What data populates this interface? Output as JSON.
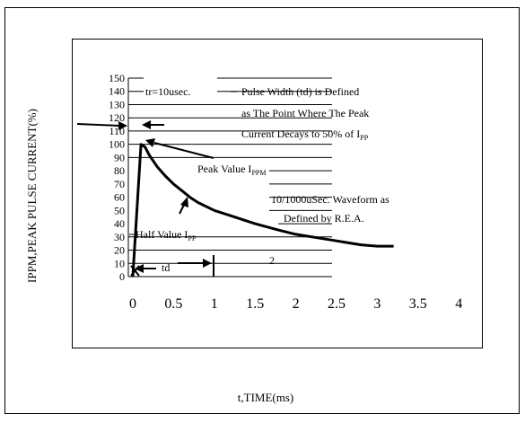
{
  "chart_data": {
    "type": "line",
    "title": "",
    "xlabel": "t,TIME(ms)",
    "ylabel": "IPPM,PEAK PULSE CURRENT(%)",
    "xlim": [
      0,
      4
    ],
    "ylim": [
      0,
      150
    ],
    "x_ticks": [
      {
        "value": 0,
        "label": "0"
      },
      {
        "value": 0.5,
        "label": "0.5"
      },
      {
        "value": 1,
        "label": "1"
      },
      {
        "value": 1.5,
        "label": "1.5"
      },
      {
        "value": 2,
        "label": "2"
      },
      {
        "value": 2.5,
        "label": "2.5"
      },
      {
        "value": 3,
        "label": "3"
      },
      {
        "value": 3.5,
        "label": "3.5"
      },
      {
        "value": 4,
        "label": "4"
      }
    ],
    "y_ticks": [
      {
        "value": 0,
        "label": "0"
      },
      {
        "value": 10,
        "label": "10"
      },
      {
        "value": 20,
        "label": "20"
      },
      {
        "value": 30,
        "label": "30"
      },
      {
        "value": 40,
        "label": "40"
      },
      {
        "value": 50,
        "label": "50"
      },
      {
        "value": 60,
        "label": "60"
      },
      {
        "value": 70,
        "label": "70"
      },
      {
        "value": 80,
        "label": "80"
      },
      {
        "value": 90,
        "label": "90"
      },
      {
        "value": 100,
        "label": "100"
      },
      {
        "value": 110,
        "label": "110"
      },
      {
        "value": 120,
        "label": "120"
      },
      {
        "value": 130,
        "label": "130"
      },
      {
        "value": 140,
        "label": "140"
      },
      {
        "value": 150,
        "label": "150"
      }
    ],
    "series": [
      {
        "x": [
          0,
          0.1,
          0.15,
          0.2,
          0.3,
          0.4,
          0.5,
          0.6,
          0.7,
          0.8,
          1.0,
          1.2,
          1.5,
          1.8,
          2.0,
          2.2,
          2.5,
          2.8,
          3.0,
          3.2
        ],
        "y": [
          0,
          100,
          98,
          92,
          83,
          76,
          70,
          65,
          60,
          56,
          50,
          46,
          40,
          35,
          32,
          30,
          27,
          24,
          23,
          23
        ]
      }
    ],
    "annotations": {
      "tr": "tr=10usec.",
      "pulse_width_1": "Pulse Width (td) is Defined",
      "pulse_width_2": "as The Point Where The Peak",
      "pulse_width_3": "Current Decays to 50% of I",
      "pulse_width_3_sub": "PP",
      "peak": "Peak Value I",
      "peak_sub": "PPM",
      "waveform_1": "10/1000uSec. Waveform as",
      "waveform_2": "Defined by R.E.A.",
      "half": "Half Value I",
      "half_sub": "PP",
      "td": "td",
      "two": "2"
    },
    "grid": "horizontal, partial",
    "legend": "none"
  }
}
